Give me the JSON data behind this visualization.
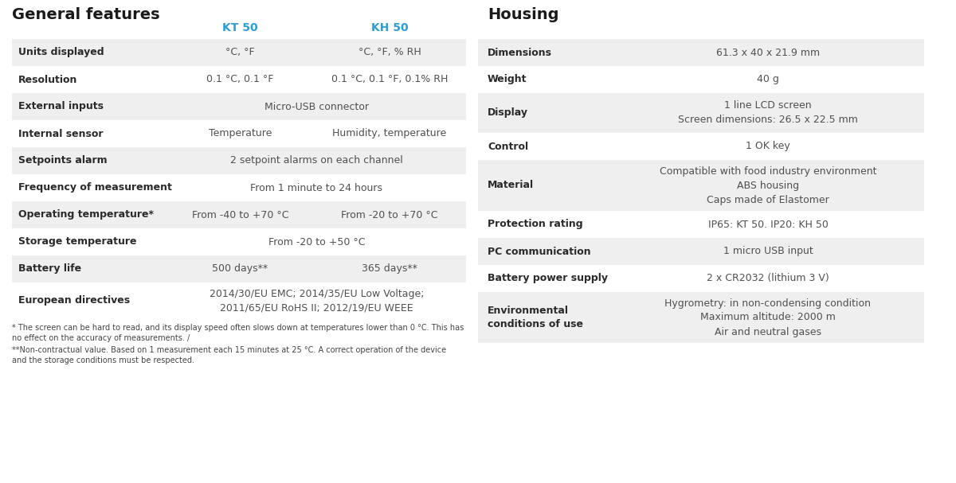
{
  "bg_color": "#ffffff",
  "left_title": "General features",
  "right_title": "Housing",
  "header_color": "#2a9fd6",
  "title_color": "#1a1a1a",
  "label_color": "#2a2a2a",
  "value_color": "#505050",
  "row_alt_color": "#efefef",
  "row_white_color": "#ffffff",
  "left_col_headers": [
    "KT 50",
    "KH 50"
  ],
  "left_rows": [
    {
      "label": "Units displayed",
      "kt50": "°C, °F",
      "kh50": "°C, °F, % RH",
      "span": false,
      "shaded": true
    },
    {
      "label": "Resolution",
      "kt50": "0.1 °C, 0.1 °F",
      "kh50": "0.1 °C, 0.1 °F, 0.1% RH",
      "span": false,
      "shaded": false
    },
    {
      "label": "External inputs",
      "kt50": "Micro-USB connector",
      "kh50": "",
      "span": true,
      "shaded": true
    },
    {
      "label": "Internal sensor",
      "kt50": "Temperature",
      "kh50": "Humidity, temperature",
      "span": false,
      "shaded": false
    },
    {
      "label": "Setpoints alarm",
      "kt50": "2 setpoint alarms on each channel",
      "kh50": "",
      "span": true,
      "shaded": true
    },
    {
      "label": "Frequency of measurement",
      "kt50": "From 1 minute to 24 hours",
      "kh50": "",
      "span": true,
      "shaded": false
    },
    {
      "label": "Operating temperature*",
      "kt50": "From -40 to +70 °C",
      "kh50": "From -20 to +70 °C",
      "span": false,
      "shaded": true
    },
    {
      "label": "Storage temperature",
      "kt50": "From -20 to +50 °C",
      "kh50": "",
      "span": true,
      "shaded": false
    },
    {
      "label": "Battery life",
      "kt50": "500 days**",
      "kh50": "365 days**",
      "span": false,
      "shaded": true
    }
  ],
  "left_directive_label": "European directives",
  "left_directive_value": "2014/30/EU EMC; 2014/35/EU Low Voltage;\n2011/65/EU RoHS II; 2012/19/EU WEEE",
  "left_footnote1": "* The screen can be hard to read, and its display speed often slows down at temperatures lower than 0 °C. This has\nno effect on the accuracy of measurements. /",
  "left_footnote2": "**Non-contractual value. Based on 1 measurement each 15 minutes at 25 °C. A correct operation of the device\nand the storage conditions must be respected.",
  "right_rows": [
    {
      "label": "Dimensions",
      "value": "61.3 x 40 x 21.9 mm",
      "shaded": true,
      "rh": 34
    },
    {
      "label": "Weight",
      "value": "40 g",
      "shaded": false,
      "rh": 34
    },
    {
      "label": "Display",
      "value": "1 line LCD screen\nScreen dimensions: 26.5 x 22.5 mm",
      "shaded": true,
      "rh": 50
    },
    {
      "label": "Control",
      "value": "1 OK key",
      "shaded": false,
      "rh": 34
    },
    {
      "label": "Material",
      "value": "Compatible with food industry environment\nABS housing\nCaps made of Elastomer",
      "shaded": true,
      "rh": 64
    },
    {
      "label": "Protection rating",
      "value": "IP65: KT 50. IP20: KH 50",
      "shaded": false,
      "rh": 34
    },
    {
      "label": "PC communication",
      "value": "1 micro USB input",
      "shaded": true,
      "rh": 34
    },
    {
      "label": "Battery power supply",
      "value": "2 x CR2032 (lithium 3 V)",
      "shaded": false,
      "rh": 34
    },
    {
      "label": "Environmental\nconditions of use",
      "value": "Hygrometry: in non-condensing condition\nMaximum altitude: 2000 m\nAir and neutral gases",
      "shaded": true,
      "rh": 64
    }
  ]
}
